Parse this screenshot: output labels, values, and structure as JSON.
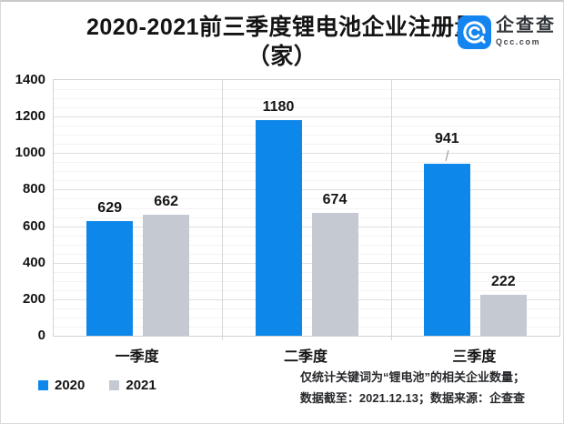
{
  "header": {
    "title_line1": "2020-2021前三季度锂电池企业注册量",
    "title_line2": "（家）",
    "logo_name": "企查查",
    "logo_domain": "Qcc.com",
    "logo_color": "#1485f0"
  },
  "chart_data": {
    "type": "bar",
    "title": "2020-2021前三季度锂电池企业注册量（家）",
    "categories": [
      "一季度",
      "二季度",
      "三季度"
    ],
    "series": [
      {
        "name": "2020",
        "color": "#0d87e9",
        "values": [
          629,
          1180,
          941
        ]
      },
      {
        "name": "2021",
        "color": "#c4c9d2",
        "values": [
          662,
          674,
          222
        ]
      }
    ],
    "ylim": [
      0,
      1400
    ],
    "ytick_step": 200,
    "yminor_step": 50,
    "grid": "horizontal major+minor lines, vertical category separators, outer border",
    "legend_position": "bottom-left",
    "annotations": [
      {
        "series_index": 0,
        "category_index": 2,
        "note": "leader line from value label 941 down to bar top"
      }
    ]
  },
  "footer": {
    "line1": "仅统计关键词为“锂电池”的相关企业数量；",
    "line2": "数据截至：2021.12.13；数据来源：企查查"
  }
}
